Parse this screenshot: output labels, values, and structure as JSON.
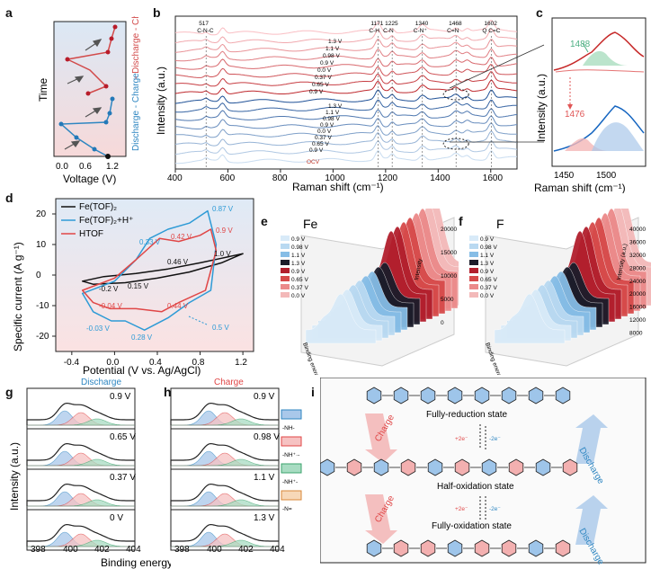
{
  "labels": {
    "a": "a",
    "b": "b",
    "c": "c",
    "d": "d",
    "e": "e",
    "f": "f",
    "g": "g",
    "h": "h",
    "i": "i"
  },
  "panel_a": {
    "ylabel": "Time",
    "xlabel": "Voltage (V)",
    "xticks": [
      "0.0",
      "0.6",
      "1.2"
    ],
    "rotlabel_blue": "Discharge - Charge",
    "rotlabel_red": "- Discharge - Charge"
  },
  "panel_b": {
    "xlabel": "Raman shift (cm⁻¹)",
    "ylabel": "Intensity (a.u.)",
    "xticks": [
      "400",
      "600",
      "800",
      "1000",
      "1200",
      "1400",
      "1600"
    ],
    "peaks": [
      {
        "pos": "517",
        "name": "C-N-C"
      },
      {
        "pos": "1171",
        "name": "C-H"
      },
      {
        "pos": "1225",
        "name": "C-N"
      },
      {
        "pos": "1340",
        "name": "C-N⁺"
      },
      {
        "pos": "1468",
        "name": "C=N"
      },
      {
        "pos": "1602",
        "name": "Q C=C"
      }
    ],
    "voltages_top": [
      "1.3 V",
      "1.1 V",
      "0.98 V",
      "0.9 V",
      "0.0 V",
      "0.37 V",
      "0.65 V",
      "0.9 V"
    ],
    "voltages_bottom": [
      "1.3 V",
      "1.1 V",
      "0.98 V",
      "0.9 V",
      "0.0 V",
      "0.37 V",
      "0.65 V",
      "0.9 V"
    ],
    "ocv_label": "OCV",
    "colors": {
      "red": "#c0392b",
      "blue": "#2e86c1"
    }
  },
  "panel_c": {
    "xlabel": "Raman shift (cm⁻¹)",
    "ylabel": "Intensity (a.u.)",
    "xticks": [
      "1450",
      "1500"
    ],
    "peak_top": "1488",
    "peak_bottom": "1476"
  },
  "panel_d": {
    "xlabel": "Potential (V vs. Ag/AgCl)",
    "ylabel": "Specific current (A g⁻¹)",
    "xticks": [
      "-0.4",
      "0.0",
      "0.4",
      "0.8",
      "1.2"
    ],
    "yticks": [
      "20",
      "10",
      "0",
      "-10",
      "-20"
    ],
    "legend": [
      "Fe(TOF)₂",
      "Fe(TOF)₂+H⁺",
      "HTOF"
    ],
    "annotations": [
      "0.87 V",
      "0.33 V",
      "0.42 V",
      "0.9 V",
      "0.46 V",
      "1.0 V",
      "-0.2 V",
      "0.15 V",
      "-0.04 V",
      "0.44 V",
      "-0.03 V",
      "0.28 V",
      "0.5 V"
    ]
  },
  "chart_data": [
    {
      "type": "line",
      "title": "",
      "xlabel": "Potential (V vs. Ag/AgCl)",
      "ylabel": "Specific current (A g⁻¹)",
      "xlim": [
        -0.55,
        1.3
      ],
      "ylim": [
        -25,
        25
      ],
      "series": [
        {
          "name": "Fe(TOF)₂",
          "color": "#111111",
          "x": [
            -0.3,
            -0.1,
            0.2,
            0.5,
            0.8,
            1.0,
            1.2,
            1.0,
            0.7,
            0.4,
            0.1,
            -0.2,
            -0.3
          ],
          "y": [
            -2,
            -0.5,
            0.5,
            2,
            4,
            5.5,
            7,
            4,
            1,
            -1,
            -2.5,
            -3,
            -2
          ]
        },
        {
          "name": "Fe(TOF)₂+H⁺",
          "color": "#2e9bd6",
          "x": [
            -0.3,
            0.0,
            0.2,
            0.33,
            0.5,
            0.7,
            0.87,
            0.95,
            0.9,
            0.7,
            0.5,
            0.28,
            0.1,
            -0.03,
            -0.2,
            -0.3
          ],
          "y": [
            -6,
            -2,
            5,
            12,
            15,
            17,
            21,
            10,
            -5,
            -9,
            -14,
            -18,
            -15,
            -15,
            -12,
            -6
          ]
        },
        {
          "name": "HTOF",
          "color": "#e04646",
          "x": [
            -0.3,
            0.0,
            0.2,
            0.42,
            0.6,
            0.8,
            0.9,
            0.95,
            0.85,
            0.6,
            0.44,
            0.2,
            -0.04,
            -0.2,
            -0.3
          ],
          "y": [
            -5,
            -1,
            5,
            12,
            11,
            13,
            15,
            8,
            -5,
            -9,
            -12,
            -11,
            -11,
            -9,
            -5
          ]
        }
      ]
    }
  ],
  "panel_e": {
    "title": "Fe",
    "axis_z": "Intensity",
    "axis_x": "Binding energy (eV)",
    "zticks": [
      "20000",
      "15000",
      "10000",
      "5000",
      "0"
    ],
    "legend": [
      "0.9 V",
      "0.98 V",
      "1.1 V",
      "1.3 V",
      "0.9 V",
      "0.65 V",
      "0.37 V",
      "0.0 V"
    ]
  },
  "panel_f": {
    "title": "F",
    "axis_z": "Intensity (a.u.)",
    "axis_x": "Binding energy (eV)",
    "zticks": [
      "40000",
      "36000",
      "32000",
      "28000",
      "24000",
      "20000",
      "16000",
      "12000",
      "8000"
    ],
    "legend": [
      "0.9 V",
      "0.98 V",
      "1.1 V",
      "1.3 V",
      "0.9 V",
      "0.65 V",
      "0.37 V",
      "0.0 V"
    ]
  },
  "panel_g": {
    "title": "Discharge",
    "voltages": [
      "0.9 V",
      "0.65 V",
      "0.37 V",
      "0 V"
    ],
    "xlabel": "Binding energy (eV)",
    "ylabel": "Intensity (a.u.)",
    "xticks": [
      "398",
      "400",
      "402",
      "404"
    ]
  },
  "panel_h": {
    "title": "Charge",
    "voltages": [
      "0.9 V",
      "0.98 V",
      "1.1 V",
      "1.3 V"
    ],
    "xticks": [
      "398",
      "400",
      "402",
      "404"
    ],
    "legend": [
      "-NH-",
      "-NH⁺·-",
      "-NH⁺-",
      "-N="
    ]
  },
  "panel_i": {
    "states": [
      "Fully-reduction state",
      "Half-oxidation state",
      "Fully-oxidation state"
    ],
    "arrows_left": [
      "Charge",
      "Charge"
    ],
    "arrows_right": [
      "Discharge",
      "Discharge"
    ],
    "electrons_plus": "+2e⁻",
    "electrons_minus": "-2e⁻"
  }
}
